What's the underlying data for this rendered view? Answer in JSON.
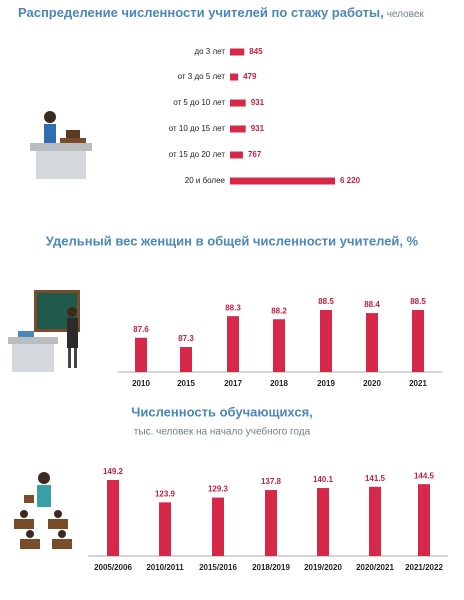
{
  "chart_data": [
    {
      "type": "barh",
      "title": "Распределение численности учителей по стажу работы,",
      "subtitle": "человек",
      "categories": [
        "до 3 лет",
        "от 3 до 5 лет",
        "от 5 до 10 лет",
        "от 10 до 15 лет",
        "от 15 до 20 лет",
        "20 и более"
      ],
      "values": [
        845,
        479,
        931,
        931,
        767,
        6220
      ],
      "value_labels": [
        "845",
        "479",
        "931",
        "931",
        "767",
        "6 220"
      ],
      "color": "#d6294a"
    },
    {
      "type": "bar",
      "title": "Удельный вес женщин в общей численности учителей, %",
      "categories": [
        "2010",
        "2015",
        "2017",
        "2018",
        "2019",
        "2020",
        "2021"
      ],
      "values": [
        87.6,
        87.3,
        88.3,
        88.2,
        88.5,
        88.4,
        88.5
      ],
      "color": "#d6294a"
    },
    {
      "type": "bar",
      "title": "Численность обучающихся,",
      "subtitle": "тыс. человек на начало учебного года",
      "categories": [
        "2005/2006",
        "2010/2011",
        "2015/2016",
        "2018/2019",
        "2019/2020",
        "2020/2021",
        "2021/2022"
      ],
      "values": [
        149.2,
        123.9,
        129.3,
        137.8,
        140.1,
        141.5,
        144.5
      ],
      "color": "#d6294a"
    }
  ]
}
